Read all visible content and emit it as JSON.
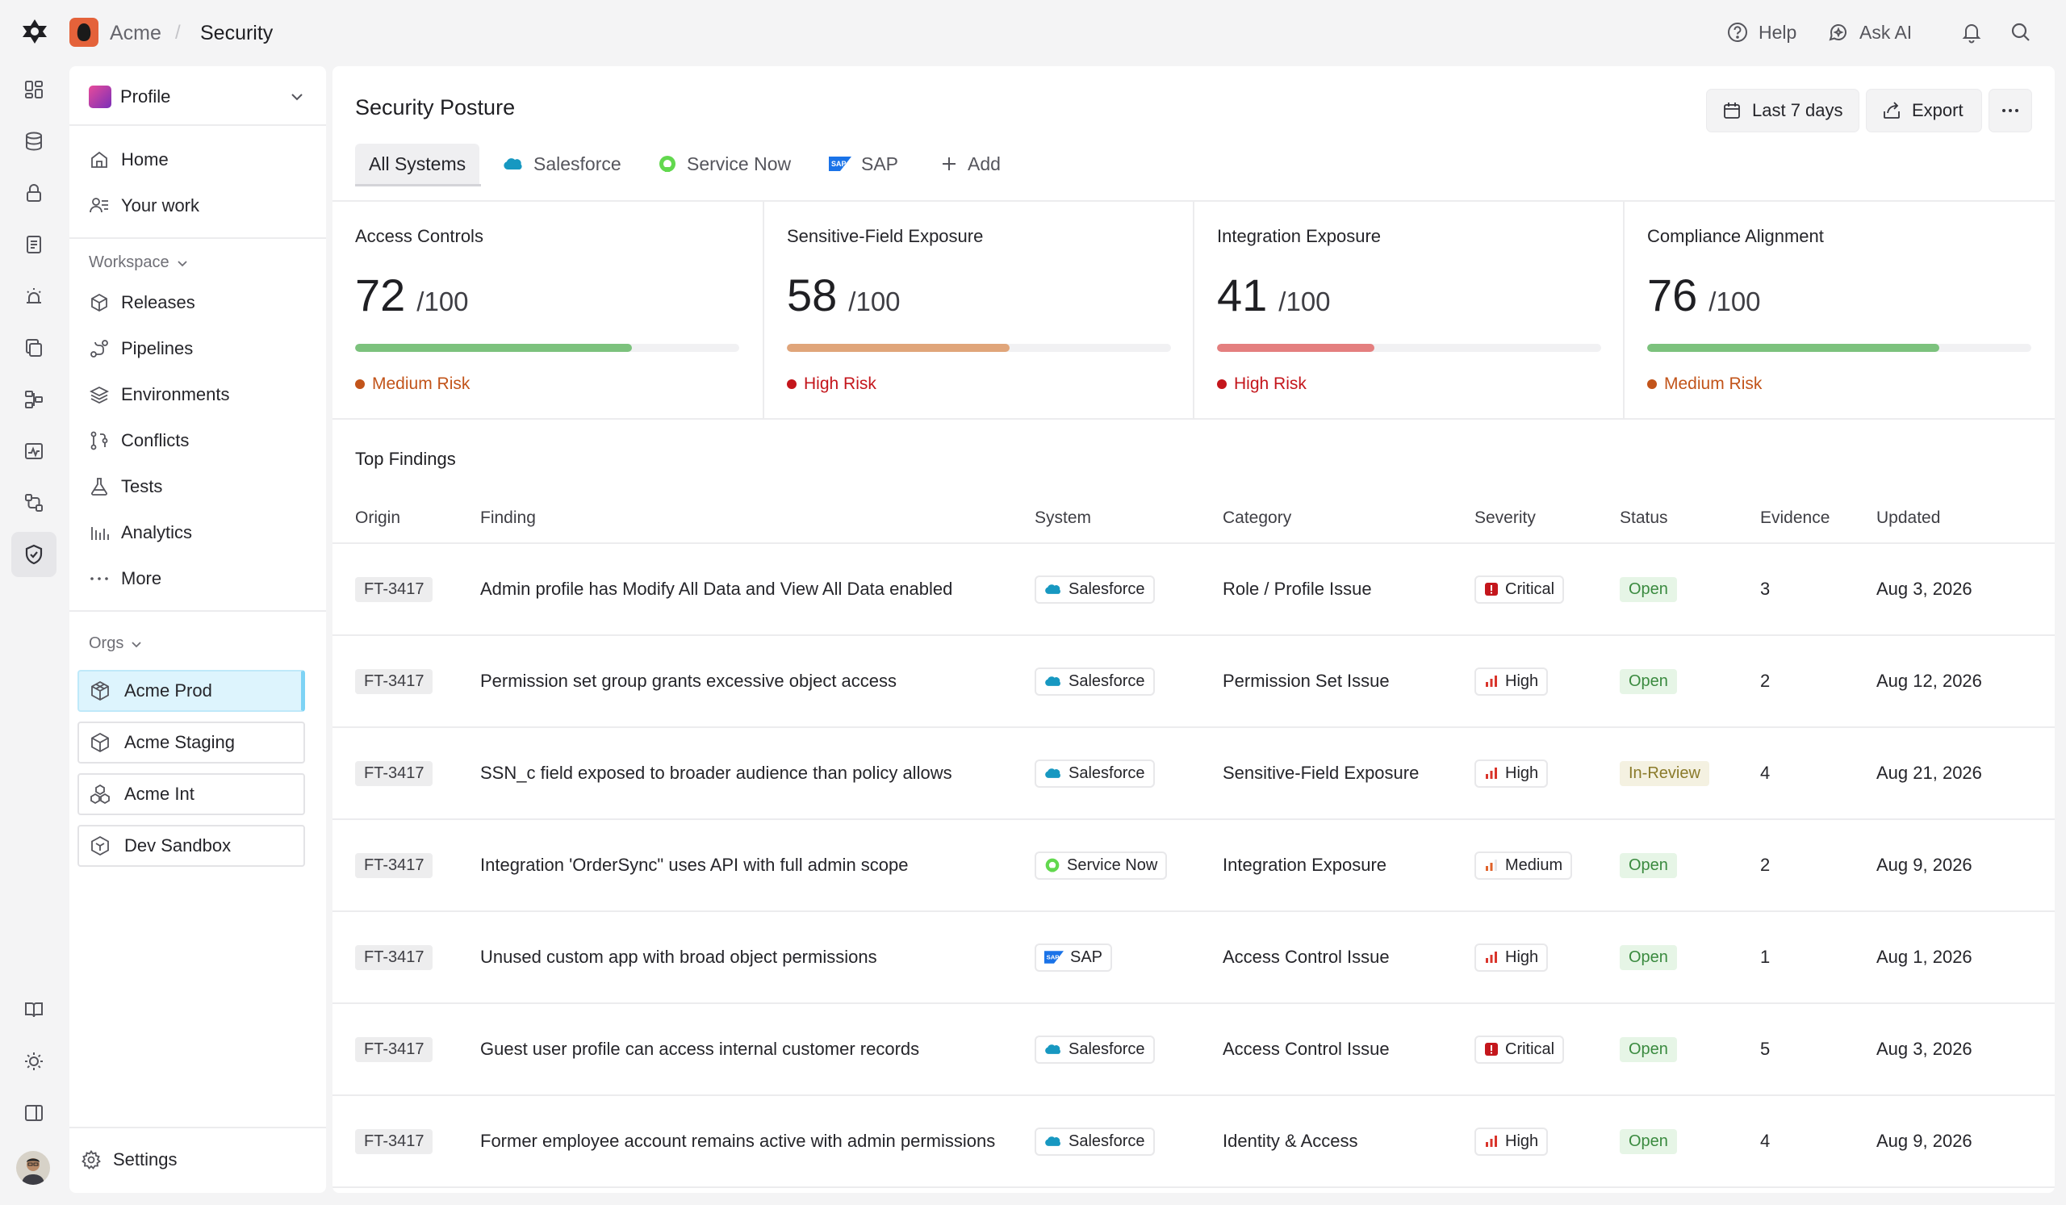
{
  "breadcrumb": {
    "org": "Acme",
    "separator": "/",
    "page": "Security"
  },
  "topbar": {
    "help": "Help",
    "ask_ai": "Ask AI"
  },
  "sidebar": {
    "workspace": "Profile",
    "primary": [
      {
        "label": "Home",
        "icon": "home-icon"
      },
      {
        "label": "Your work",
        "icon": "your-work-icon"
      }
    ],
    "workspace_section": "Workspace",
    "workspace_items": [
      {
        "label": "Releases",
        "icon": "box-icon"
      },
      {
        "label": "Pipelines",
        "icon": "pipeline-icon"
      },
      {
        "label": "Environments",
        "icon": "layers-icon"
      },
      {
        "label": "Conflicts",
        "icon": "merge-icon"
      },
      {
        "label": "Tests",
        "icon": "flask-icon"
      },
      {
        "label": "Analytics",
        "icon": "chart-bars-icon"
      },
      {
        "label": "More",
        "icon": "dots-icon"
      }
    ],
    "orgs_section": "Orgs",
    "orgs": [
      {
        "label": "Acme Prod",
        "active": true
      },
      {
        "label": "Acme Staging",
        "active": false
      },
      {
        "label": "Acme Int",
        "active": false
      },
      {
        "label": "Dev Sandbox",
        "active": false
      }
    ],
    "settings": "Settings"
  },
  "main": {
    "title": "Security Posture",
    "date_range": "Last 7 days",
    "export": "Export",
    "tabs": [
      {
        "label": "All Systems",
        "icon": null,
        "active": true
      },
      {
        "label": "Salesforce",
        "icon": "salesforce-icon"
      },
      {
        "label": "Service Now",
        "icon": "servicenow-icon"
      },
      {
        "label": "SAP",
        "icon": "sap-icon"
      },
      {
        "label": "Add",
        "icon": "plus-icon"
      }
    ],
    "metrics": [
      {
        "title": "Access Controls",
        "score": "72",
        "max": "/100",
        "fraction": 0.72,
        "risk": "Medium Risk",
        "bar_color": "#7cc27d",
        "risk_color": "#c2541a"
      },
      {
        "title": "Sensitive-Field Exposure",
        "score": "58",
        "max": "/100",
        "fraction": 0.58,
        "risk": "High Risk",
        "bar_color": "#e0a57a",
        "risk_color": "#c4161c"
      },
      {
        "title": "Integration Exposure",
        "score": "41",
        "max": "/100",
        "fraction": 0.41,
        "risk": "High Risk",
        "bar_color": "#e47f7f",
        "risk_color": "#c4161c"
      },
      {
        "title": "Compliance Alignment",
        "score": "76",
        "max": "/100",
        "fraction": 0.76,
        "risk": "Medium Risk",
        "bar_color": "#7cc27d",
        "risk_color": "#c2541a"
      }
    ],
    "findings_title": "Top Findings",
    "columns": [
      "Origin",
      "Finding",
      "System",
      "Category",
      "Severity",
      "Status",
      "Evidence",
      "Updated"
    ],
    "findings": [
      {
        "id": "FT-3417",
        "finding": "Admin profile has Modify All Data and View All Data enabled",
        "system": "Salesforce",
        "category": "Role / Profile Issue",
        "severity": "Critical",
        "status": "Open",
        "evidence": "3",
        "updated": "Aug 3, 2026"
      },
      {
        "id": "FT-3417",
        "finding": "Permission set group grants excessive object access",
        "system": "Salesforce",
        "category": "Permission Set Issue",
        "severity": "High",
        "status": "Open",
        "evidence": "2",
        "updated": "Aug 12, 2026"
      },
      {
        "id": "FT-3417",
        "finding": "SSN_c field exposed to broader audience than policy allows",
        "system": "Salesforce",
        "category": "Sensitive-Field Exposure",
        "severity": "High",
        "status": "In-Review",
        "evidence": "4",
        "updated": "Aug 21, 2026"
      },
      {
        "id": "FT-3417",
        "finding": "Integration 'OrderSync\" uses API with full admin scope",
        "system": "Service Now",
        "category": "Integration Exposure",
        "severity": "Medium",
        "status": "Open",
        "evidence": "2",
        "updated": "Aug 9, 2026"
      },
      {
        "id": "FT-3417",
        "finding": "Unused custom app with broad object permissions",
        "system": "SAP",
        "category": "Access Control Issue",
        "severity": "High",
        "status": "Open",
        "evidence": "1",
        "updated": "Aug 1, 2026"
      },
      {
        "id": "FT-3417",
        "finding": "Guest user profile can access internal customer records",
        "system": "Salesforce",
        "category": "Access Control Issue",
        "severity": "Critical",
        "status": "Open",
        "evidence": "5",
        "updated": "Aug 3, 2026"
      },
      {
        "id": "FT-3417",
        "finding": "Former employee account remains active with admin permissions",
        "system": "Salesforce",
        "category": "Identity & Access",
        "severity": "High",
        "status": "Open",
        "evidence": "4",
        "updated": "Aug 9, 2026"
      }
    ]
  },
  "colors": {
    "accent": "#7dd3f5",
    "open_bg": "#e6f5e6",
    "open_text": "#3a8a3f",
    "review_bg": "#f4f1e1",
    "review_text": "#8a7a2a",
    "critical": "#c4161c"
  }
}
